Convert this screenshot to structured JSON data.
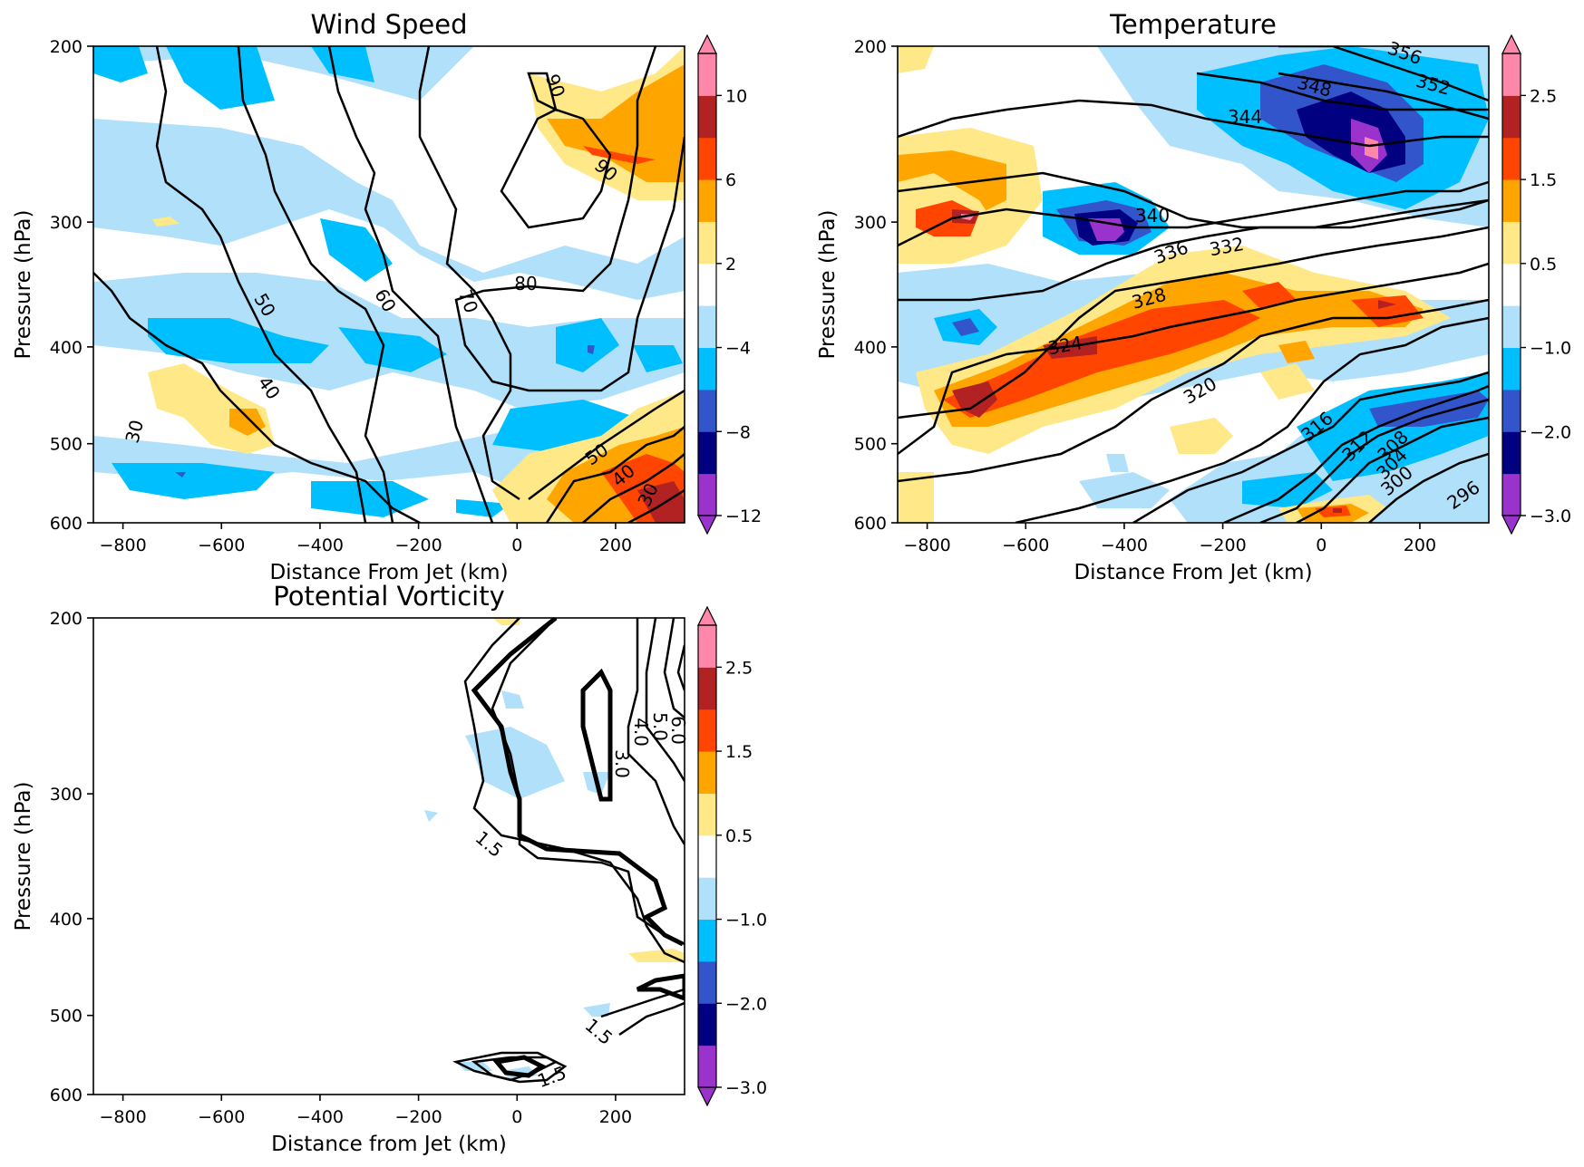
{
  "figure": {
    "panels": [
      {
        "title": "Wind Speed"
      },
      {
        "title": "Temperature"
      },
      {
        "title": "Potential Vorticity"
      }
    ]
  },
  "chart_data": [
    {
      "type": "heatmap",
      "title": "Wind Speed",
      "xlabel": "Distance From Jet (km)",
      "ylabel": "Pressure (hPa)",
      "xlim": [
        -860,
        340
      ],
      "ylim": [
        600,
        200
      ],
      "yscale": "log",
      "x_ticks": [
        -800,
        -600,
        -400,
        -200,
        0,
        200
      ],
      "x_tick_labels": [
        "−800",
        "−600",
        "−400",
        "−200",
        "0",
        "200"
      ],
      "y_ticks": [
        200,
        300,
        400,
        500,
        600
      ],
      "y_tick_labels": [
        "200",
        "300",
        "400",
        "500",
        "600"
      ],
      "colorbar": {
        "levels": [
          -12,
          -10,
          -8,
          -6,
          -4,
          -2,
          2,
          4,
          6,
          8,
          10,
          12
        ],
        "tick_values": [
          -12,
          -8,
          -4,
          2,
          6,
          10
        ],
        "tick_labels": [
          "−12",
          "−8",
          "−4",
          "2",
          "6",
          "10"
        ],
        "colors": [
          "#9933cc",
          "#000080",
          "#3355cc",
          "#00bfff",
          "#b0e0fa",
          "#ffffff",
          "#ffe888",
          "#ffa500",
          "#ff4500",
          "#b22222",
          "#ff88aa"
        ],
        "under_color": "#9933cc",
        "over_color": "#ff88aa",
        "extend": "both"
      },
      "shaded_cells": [
        {
          "x": -780,
          "p": 230,
          "level": -4
        },
        {
          "x": -640,
          "p": 220,
          "level": -4
        },
        {
          "x": -520,
          "p": 240,
          "level": -4
        },
        {
          "x": -400,
          "p": 230,
          "level": -2
        },
        {
          "x": -300,
          "p": 260,
          "level": -2
        },
        {
          "x": -330,
          "p": 320,
          "level": -4
        },
        {
          "x": -200,
          "p": 300,
          "level": -2
        },
        {
          "x": -780,
          "p": 380,
          "level": -2
        },
        {
          "x": -640,
          "p": 400,
          "level": -4
        },
        {
          "x": -480,
          "p": 390,
          "level": -4
        },
        {
          "x": -300,
          "p": 400,
          "level": -2
        },
        {
          "x": -100,
          "p": 370,
          "level": -2
        },
        {
          "x": 160,
          "p": 400,
          "level": -4
        },
        {
          "x": 160,
          "p": 405,
          "level": -6
        },
        {
          "x": -560,
          "p": 460,
          "level": 2
        },
        {
          "x": -530,
          "p": 485,
          "level": 4
        },
        {
          "x": -100,
          "p": 480,
          "level": -4
        },
        {
          "x": -700,
          "p": 540,
          "level": -4
        },
        {
          "x": -340,
          "p": 560,
          "level": -4
        },
        {
          "x": 120,
          "p": 250,
          "level": 2
        },
        {
          "x": 200,
          "p": 250,
          "level": 4
        },
        {
          "x": 300,
          "p": 240,
          "level": 4
        },
        {
          "x": 220,
          "p": 270,
          "level": 6
        },
        {
          "x": 200,
          "p": 540,
          "level": 2
        },
        {
          "x": 260,
          "p": 560,
          "level": 4
        },
        {
          "x": 280,
          "p": 570,
          "level": 6
        },
        {
          "x": 320,
          "p": 590,
          "level": 8
        }
      ],
      "contours": {
        "units": "m/s",
        "levels": [
          30,
          40,
          50,
          60,
          70,
          80,
          90
        ],
        "labels": [
          "30",
          "40",
          "50",
          "60",
          "70",
          "80",
          "90",
          "90",
          "50",
          "40",
          "30"
        ]
      }
    },
    {
      "type": "heatmap",
      "title": "Temperature",
      "xlabel": "Distance From Jet (km)",
      "ylabel": "Pressure (hPa)",
      "xlim": [
        -860,
        340
      ],
      "ylim": [
        600,
        200
      ],
      "yscale": "log",
      "x_ticks": [
        -800,
        -600,
        -400,
        -200,
        0,
        200
      ],
      "x_tick_labels": [
        "−800",
        "−600",
        "−400",
        "−200",
        "0",
        "200"
      ],
      "y_ticks": [
        200,
        300,
        400,
        500,
        600
      ],
      "y_tick_labels": [
        "200",
        "300",
        "400",
        "500",
        "600"
      ],
      "colorbar": {
        "levels": [
          -3.0,
          -2.5,
          -2.0,
          -1.5,
          -1.0,
          -0.5,
          0.5,
          1.0,
          1.5,
          2.0,
          2.5,
          3.0
        ],
        "tick_values": [
          -3.0,
          -2.0,
          -1.0,
          0.5,
          1.5,
          2.5
        ],
        "tick_labels": [
          "−3.0",
          "−2.0",
          "−1.0",
          "0.5",
          "1.5",
          "2.5"
        ],
        "colors": [
          "#9933cc",
          "#000080",
          "#3355cc",
          "#00bfff",
          "#b0e0fa",
          "#ffffff",
          "#ffe888",
          "#ffa500",
          "#ff4500",
          "#b22222",
          "#ff88aa"
        ],
        "extend": "both"
      },
      "shaded_cells": [
        {
          "x": -720,
          "p": 270,
          "level": 1.0
        },
        {
          "x": -700,
          "p": 300,
          "level": 1.5
        },
        {
          "x": -690,
          "p": 300,
          "level": 2.0
        },
        {
          "x": -690,
          "p": 298,
          "level": 2.5
        },
        {
          "x": -360,
          "p": 305,
          "level": -1.5
        },
        {
          "x": -350,
          "p": 310,
          "level": -2.0
        },
        {
          "x": -340,
          "p": 315,
          "level": -3.0
        },
        {
          "x": 100,
          "p": 230,
          "level": -1.0
        },
        {
          "x": 130,
          "p": 240,
          "level": -1.5
        },
        {
          "x": 140,
          "p": 250,
          "level": -2.0
        },
        {
          "x": 160,
          "p": 260,
          "level": -2.5
        },
        {
          "x": 170,
          "p": 270,
          "level": -3.0
        },
        {
          "x": -100,
          "p": 360,
          "level": 0.5
        },
        {
          "x": -80,
          "p": 370,
          "level": 1.0
        },
        {
          "x": -40,
          "p": 375,
          "level": 1.5
        },
        {
          "x": 20,
          "p": 380,
          "level": 1.5
        },
        {
          "x": -500,
          "p": 420,
          "level": 1.0
        },
        {
          "x": -560,
          "p": 430,
          "level": 1.5
        },
        {
          "x": -650,
          "p": 450,
          "level": 2.0
        },
        {
          "x": -700,
          "p": 460,
          "level": 1.5
        },
        {
          "x": 20,
          "p": 575,
          "level": 1.0
        },
        {
          "x": 40,
          "p": 585,
          "level": 1.5
        },
        {
          "x": 150,
          "p": 480,
          "level": -1.0
        },
        {
          "x": 240,
          "p": 470,
          "level": -1.5
        },
        {
          "x": 280,
          "p": 460,
          "level": -2.0
        }
      ],
      "contours": {
        "units": "K",
        "levels": [
          296,
          300,
          304,
          308,
          312,
          316,
          320,
          324,
          328,
          332,
          336,
          340,
          344,
          348,
          352,
          356
        ],
        "labels": [
          "356",
          "352",
          "348",
          "344",
          "340",
          "336",
          "332",
          "328",
          "324",
          "320",
          "316",
          "312",
          "308",
          "304",
          "300",
          "296"
        ]
      }
    },
    {
      "type": "heatmap",
      "title": "Potential Vorticity",
      "xlabel": "Distance from Jet (km)",
      "ylabel": "Pressure (hPa)",
      "xlim": [
        -860,
        340
      ],
      "ylim": [
        600,
        200
      ],
      "yscale": "log",
      "x_ticks": [
        -800,
        -600,
        -400,
        -200,
        0,
        200
      ],
      "x_tick_labels": [
        "−800",
        "−600",
        "−400",
        "−200",
        "0",
        "200"
      ],
      "y_ticks": [
        200,
        300,
        400,
        500,
        600
      ],
      "y_tick_labels": [
        "200",
        "300",
        "400",
        "500",
        "600"
      ],
      "colorbar": {
        "levels": [
          -3.0,
          -2.5,
          -2.0,
          -1.5,
          -1.0,
          -0.5,
          0.5,
          1.0,
          1.5,
          2.0,
          2.5,
          3.0
        ],
        "tick_values": [
          -3.0,
          -2.0,
          -1.0,
          0.5,
          1.5,
          2.5
        ],
        "tick_labels": [
          "−3.0",
          "−2.0",
          "−1.0",
          "0.5",
          "1.5",
          "2.5"
        ],
        "colors": [
          "#9933cc",
          "#000080",
          "#3355cc",
          "#00bfff",
          "#b0e0fa",
          "#ffffff",
          "#ffe888",
          "#ffa500",
          "#ff4500",
          "#b22222",
          "#ff88aa"
        ],
        "extend": "both"
      },
      "shaded_cells": [
        {
          "x": 0,
          "p": 203,
          "level": 0.5
        },
        {
          "x": 0,
          "p": 255,
          "level": -1.0
        },
        {
          "x": 30,
          "p": 290,
          "level": -1.0
        },
        {
          "x": 170,
          "p": 300,
          "level": -1.0
        },
        {
          "x": -150,
          "p": 322,
          "level": -1.0
        },
        {
          "x": 290,
          "p": 438,
          "level": 0.5
        },
        {
          "x": 170,
          "p": 500,
          "level": -1.0
        },
        {
          "x": -60,
          "p": 560,
          "level": -1.0
        }
      ],
      "contours": {
        "units": "PVU",
        "levels": [
          1.5,
          2.0,
          3.0,
          4.0,
          5.0,
          6.0
        ],
        "labels": [
          "1.5",
          "1.5",
          "1.5",
          "3.0",
          "4.0",
          "5.0",
          "6.0"
        ]
      }
    }
  ]
}
